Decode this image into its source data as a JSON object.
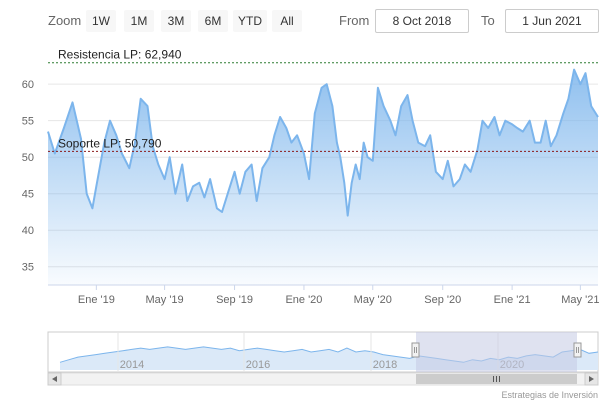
{
  "rangeSelector": {
    "zoom_label": "Zoom",
    "buttons": [
      "1W",
      "1M",
      "3M",
      "6M",
      "YTD",
      "All"
    ],
    "from_label": "From",
    "from_value": "8 Oct 2018",
    "to_label": "To",
    "to_value": "1 Jun 2021"
  },
  "credits": "Estrategias de Inversión",
  "colors": {
    "series_line": "#7cb5ec",
    "resistance_line": "#2e7d32",
    "support_line": "#8b1a1a",
    "navigator_mask": "#c4cbe4",
    "grid": "#e6e6e6"
  },
  "chart_data": {
    "type": "area",
    "y_ticks": [
      "35",
      "40",
      "45",
      "50",
      "55",
      "60"
    ],
    "ylim": [
      32.5,
      65.5
    ],
    "x_ticks": [
      "Ene '19",
      "May '19",
      "Sep '19",
      "Ene '20",
      "May '20",
      "Sep '20",
      "Ene '21",
      "May '21"
    ],
    "x_range": [
      "2018-10-08",
      "2021-06-01"
    ],
    "grid": true,
    "plot_lines": [
      {
        "label": "Resistencia LP: 62,940",
        "value": 62.94,
        "style": "dashed"
      },
      {
        "label": "Soporte LP: 50,790",
        "value": 50.79,
        "style": "dashed"
      }
    ],
    "series": [
      {
        "x": [
          "2018-10-08",
          "2018-10-20",
          "2018-11-05",
          "2018-11-20",
          "2018-12-05",
          "2018-12-15",
          "2018-12-25",
          "2019-01-01",
          "2019-01-15",
          "2019-01-25",
          "2019-02-05",
          "2019-02-15",
          "2019-02-28",
          "2019-03-10",
          "2019-03-20",
          "2019-04-01",
          "2019-04-10",
          "2019-04-20",
          "2019-05-01",
          "2019-05-10",
          "2019-05-20",
          "2019-06-01",
          "2019-06-10",
          "2019-06-20",
          "2019-07-01",
          "2019-07-10",
          "2019-07-20",
          "2019-08-01",
          "2019-08-10",
          "2019-08-20",
          "2019-09-01",
          "2019-09-10",
          "2019-09-20",
          "2019-10-01",
          "2019-10-10",
          "2019-10-20",
          "2019-11-01",
          "2019-11-10",
          "2019-11-20",
          "2019-12-01",
          "2019-12-10",
          "2019-12-20",
          "2020-01-01",
          "2020-01-10",
          "2020-01-20",
          "2020-02-01",
          "2020-02-10",
          "2020-02-20",
          "2020-02-28",
          "2020-03-05",
          "2020-03-12",
          "2020-03-18",
          "2020-03-25",
          "2020-04-01",
          "2020-04-08",
          "2020-04-15",
          "2020-04-22",
          "2020-05-01",
          "2020-05-10",
          "2020-05-20",
          "2020-06-01",
          "2020-06-10",
          "2020-06-20",
          "2020-07-01",
          "2020-07-10",
          "2020-07-20",
          "2020-08-01",
          "2020-08-10",
          "2020-08-20",
          "2020-09-01",
          "2020-09-10",
          "2020-09-20",
          "2020-10-01",
          "2020-10-10",
          "2020-10-20",
          "2020-11-01",
          "2020-11-10",
          "2020-11-20",
          "2020-12-01",
          "2020-12-10",
          "2020-12-20",
          "2021-01-01",
          "2021-01-10",
          "2021-01-20",
          "2021-02-01",
          "2021-02-10",
          "2021-02-20",
          "2021-03-01",
          "2021-03-10",
          "2021-03-20",
          "2021-04-01",
          "2021-04-10",
          "2021-04-20",
          "2021-05-01",
          "2021-05-10",
          "2021-05-20",
          "2021-06-01"
        ],
        "values": [
          53.5,
          50.5,
          54,
          57.5,
          52.5,
          45,
          43,
          46,
          52,
          55,
          53,
          50.5,
          48.5,
          52,
          58,
          57,
          51.5,
          49,
          47,
          50,
          45,
          49,
          44,
          46,
          46.5,
          44.5,
          47,
          43,
          42.5,
          45,
          48,
          45,
          48,
          49,
          44,
          48.5,
          50,
          53,
          55.5,
          54,
          52,
          53,
          50.5,
          47,
          56,
          59.5,
          60,
          57,
          52,
          50,
          46.5,
          42,
          46.5,
          49,
          47,
          52,
          50,
          49.5,
          59.5,
          57,
          55,
          53,
          57,
          58.5,
          55,
          52,
          51.5,
          53,
          48,
          47,
          49.5,
          46,
          47,
          49,
          48,
          51,
          55,
          54,
          55.5,
          53,
          55,
          54.5,
          54,
          53.5,
          55,
          52,
          52,
          55,
          51.5,
          53,
          56,
          58,
          62,
          60,
          61.5,
          57,
          55.5
        ]
      }
    ]
  },
  "navigator": {
    "x_ticks": [
      "2014",
      "2016",
      "2018",
      "2020"
    ],
    "values": [
      44,
      46,
      48,
      49,
      50,
      51,
      52,
      53,
      54,
      55,
      54,
      55,
      56,
      55,
      54,
      55,
      56,
      55,
      54,
      55,
      53,
      54,
      55,
      54,
      53,
      52,
      53,
      54,
      52,
      53,
      54,
      52,
      55,
      52,
      53,
      52,
      50,
      49,
      48,
      47,
      49,
      48,
      47,
      46,
      45,
      44,
      46,
      45,
      47,
      46,
      48,
      47,
      49,
      50,
      49,
      48,
      52,
      53,
      54,
      51,
      52
    ]
  }
}
